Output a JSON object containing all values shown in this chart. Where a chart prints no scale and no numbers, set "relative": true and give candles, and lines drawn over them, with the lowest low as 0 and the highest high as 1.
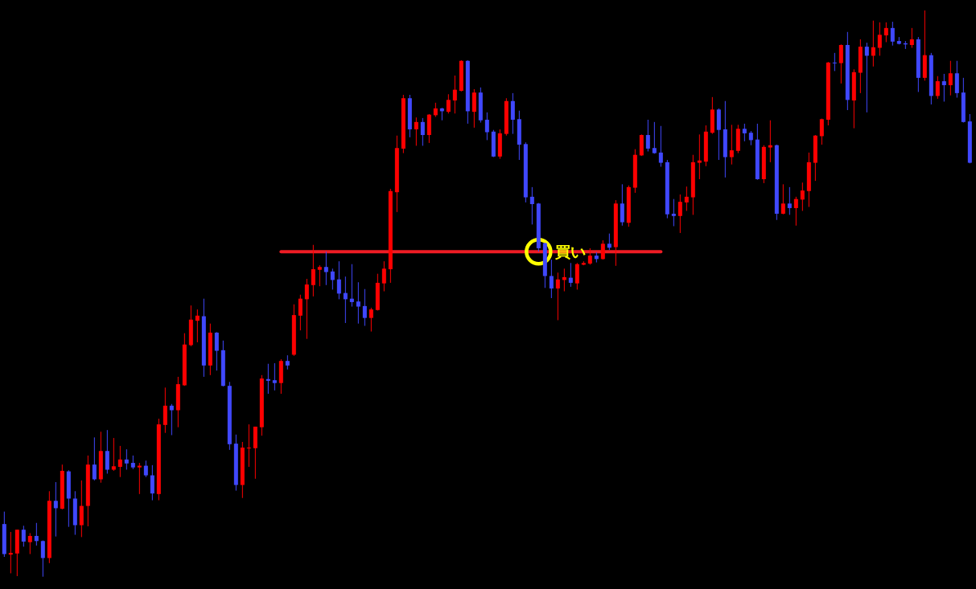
{
  "chart_data": {
    "type": "candlestick",
    "relative": true,
    "categories": [
      null,
      null,
      null,
      null,
      null,
      null,
      null,
      null,
      null,
      null,
      null,
      null,
      null,
      null,
      null,
      null,
      null,
      null,
      null,
      null,
      null,
      null,
      null,
      null,
      null,
      null,
      null,
      null,
      null,
      null,
      null,
      null,
      null,
      null,
      null,
      null,
      null,
      null,
      null,
      null,
      null,
      null,
      null,
      null,
      null,
      null,
      null,
      null,
      null,
      null,
      null,
      null,
      null,
      null,
      null,
      null,
      null,
      null,
      null,
      null,
      null,
      null,
      null,
      null,
      null,
      null,
      null,
      null,
      null,
      null,
      null,
      null,
      null,
      null,
      null,
      null,
      null,
      null,
      null,
      null,
      null,
      null,
      null,
      null,
      null,
      null,
      null,
      null,
      null,
      null,
      null,
      null,
      null,
      null,
      null,
      null,
      null,
      null,
      null,
      null,
      null,
      null,
      null,
      null,
      null,
      null,
      null,
      null,
      null,
      null,
      null,
      null,
      null,
      null,
      null,
      null,
      null,
      null,
      null,
      null,
      null,
      null,
      null,
      null,
      null,
      null,
      null,
      null,
      null,
      null,
      null,
      null,
      null,
      null,
      null,
      null,
      null,
      null,
      null,
      null,
      null,
      null,
      null,
      null,
      null,
      null,
      null,
      null,
      null,
      null,
      null
    ],
    "ohlc": [
      [
        0.093,
        0.115,
        0.035,
        0.04
      ],
      [
        0.039,
        0.079,
        0.006,
        0.042
      ],
      [
        0.041,
        0.083,
        0.001,
        0.083
      ],
      [
        0.083,
        0.09,
        0.053,
        0.062
      ],
      [
        0.061,
        0.077,
        0.04,
        0.072
      ],
      [
        0.072,
        0.095,
        0.055,
        0.063
      ],
      [
        0.063,
        0.064,
        0.0,
        0.033
      ],
      [
        0.033,
        0.151,
        0.024,
        0.134
      ],
      [
        0.134,
        0.167,
        0.071,
        0.121
      ],
      [
        0.12,
        0.198,
        0.119,
        0.187
      ],
      [
        0.186,
        0.188,
        0.088,
        0.138
      ],
      [
        0.138,
        0.151,
        0.074,
        0.091
      ],
      [
        0.091,
        0.17,
        0.07,
        0.125
      ],
      [
        0.125,
        0.214,
        0.089,
        0.198
      ],
      [
        0.198,
        0.246,
        0.17,
        0.172
      ],
      [
        0.172,
        0.256,
        0.166,
        0.222
      ],
      [
        0.222,
        0.259,
        0.182,
        0.189
      ],
      [
        0.189,
        0.245,
        0.187,
        0.195
      ],
      [
        0.194,
        0.231,
        0.176,
        0.207
      ],
      [
        0.207,
        0.225,
        0.189,
        0.2
      ],
      [
        0.201,
        0.214,
        0.19,
        0.193
      ],
      [
        0.193,
        0.201,
        0.146,
        0.196
      ],
      [
        0.196,
        0.205,
        0.176,
        0.179
      ],
      [
        0.179,
        0.197,
        0.135,
        0.147
      ],
      [
        0.146,
        0.279,
        0.135,
        0.269
      ],
      [
        0.268,
        0.334,
        0.254,
        0.302
      ],
      [
        0.302,
        0.305,
        0.25,
        0.294
      ],
      [
        0.294,
        0.353,
        0.264,
        0.34
      ],
      [
        0.338,
        0.43,
        0.337,
        0.41
      ],
      [
        0.409,
        0.479,
        0.407,
        0.454
      ],
      [
        0.452,
        0.472,
        0.414,
        0.461
      ],
      [
        0.46,
        0.491,
        0.353,
        0.373
      ],
      [
        0.373,
        0.447,
        0.356,
        0.431
      ],
      [
        0.431,
        0.432,
        0.364,
        0.399
      ],
      [
        0.4,
        0.417,
        0.336,
        0.337
      ],
      [
        0.337,
        0.344,
        0.224,
        0.234
      ],
      [
        0.235,
        0.251,
        0.152,
        0.162
      ],
      [
        0.162,
        0.238,
        0.139,
        0.228
      ],
      [
        0.227,
        0.269,
        0.194,
        0.228
      ],
      [
        0.227,
        0.265,
        0.173,
        0.265
      ],
      [
        0.264,
        0.356,
        0.249,
        0.35
      ],
      [
        0.349,
        0.376,
        0.323,
        0.346
      ],
      [
        0.347,
        0.377,
        0.329,
        0.342
      ],
      [
        0.342,
        0.384,
        0.323,
        0.381
      ],
      [
        0.381,
        0.391,
        0.366,
        0.373
      ],
      [
        0.392,
        0.481,
        0.39,
        0.462
      ],
      [
        0.461,
        0.498,
        0.435,
        0.491
      ],
      [
        0.49,
        0.526,
        0.42,
        0.516
      ],
      [
        0.515,
        0.586,
        0.495,
        0.543
      ],
      [
        0.542,
        0.55,
        0.513,
        0.547
      ],
      [
        0.547,
        0.574,
        0.515,
        0.538
      ],
      [
        0.539,
        0.544,
        0.507,
        0.524
      ],
      [
        0.525,
        0.557,
        0.49,
        0.5
      ],
      [
        0.501,
        0.53,
        0.448,
        0.49
      ],
      [
        0.491,
        0.552,
        0.477,
        0.485
      ],
      [
        0.486,
        0.52,
        0.447,
        0.477
      ],
      [
        0.478,
        0.508,
        0.443,
        0.457
      ],
      [
        0.457,
        0.475,
        0.433,
        0.472
      ],
      [
        0.471,
        0.535,
        0.47,
        0.519
      ],
      [
        0.518,
        0.557,
        0.504,
        0.544
      ],
      [
        0.543,
        0.685,
        0.519,
        0.681
      ],
      [
        0.679,
        0.779,
        0.644,
        0.757
      ],
      [
        0.756,
        0.851,
        0.748,
        0.845
      ],
      [
        0.845,
        0.851,
        0.776,
        0.79
      ],
      [
        0.79,
        0.811,
        0.761,
        0.803
      ],
      [
        0.803,
        0.81,
        0.761,
        0.78
      ],
      [
        0.78,
        0.817,
        0.766,
        0.816
      ],
      [
        0.815,
        0.837,
        0.812,
        0.827
      ],
      [
        0.827,
        0.828,
        0.806,
        0.822
      ],
      [
        0.821,
        0.852,
        0.818,
        0.842
      ],
      [
        0.841,
        0.885,
        0.818,
        0.86
      ],
      [
        0.858,
        0.912,
        0.857,
        0.911
      ],
      [
        0.911,
        0.912,
        0.8,
        0.822
      ],
      [
        0.821,
        0.861,
        0.793,
        0.855
      ],
      [
        0.855,
        0.864,
        0.802,
        0.806
      ],
      [
        0.807,
        0.82,
        0.771,
        0.785
      ],
      [
        0.786,
        0.789,
        0.741,
        0.742
      ],
      [
        0.742,
        0.79,
        0.738,
        0.783
      ],
      [
        0.782,
        0.845,
        0.779,
        0.84
      ],
      [
        0.84,
        0.854,
        0.782,
        0.807
      ],
      [
        0.808,
        0.823,
        0.736,
        0.763
      ],
      [
        0.764,
        0.767,
        0.661,
        0.67
      ],
      [
        0.671,
        0.688,
        0.622,
        0.658
      ],
      [
        0.659,
        0.66,
        0.574,
        0.58
      ],
      [
        0.589,
        0.59,
        0.51,
        0.531
      ],
      [
        0.531,
        0.56,
        0.492,
        0.509
      ],
      [
        0.509,
        0.537,
        0.453,
        0.525
      ],
      [
        0.524,
        0.544,
        0.504,
        0.529
      ],
      [
        0.528,
        0.554,
        0.512,
        0.519
      ],
      [
        0.518,
        0.554,
        0.507,
        0.552
      ],
      [
        0.551,
        0.557,
        0.55,
        0.554
      ],
      [
        0.553,
        0.58,
        0.551,
        0.567
      ],
      [
        0.567,
        0.573,
        0.555,
        0.561
      ],
      [
        0.561,
        0.594,
        0.56,
        0.588
      ],
      [
        0.588,
        0.606,
        0.577,
        0.581
      ],
      [
        0.582,
        0.665,
        0.549,
        0.659
      ],
      [
        0.659,
        0.693,
        0.62,
        0.626
      ],
      [
        0.625,
        0.691,
        0.618,
        0.688
      ],
      [
        0.687,
        0.755,
        0.678,
        0.745
      ],
      [
        0.744,
        0.781,
        0.743,
        0.78
      ],
      [
        0.78,
        0.807,
        0.751,
        0.756
      ],
      [
        0.757,
        0.803,
        0.747,
        0.748
      ],
      [
        0.749,
        0.796,
        0.724,
        0.731
      ],
      [
        0.732,
        0.736,
        0.633,
        0.64
      ],
      [
        0.641,
        0.667,
        0.619,
        0.637
      ],
      [
        0.637,
        0.675,
        0.607,
        0.662
      ],
      [
        0.661,
        0.689,
        0.646,
        0.671
      ],
      [
        0.67,
        0.745,
        0.639,
        0.732
      ],
      [
        0.731,
        0.781,
        0.702,
        0.735
      ],
      [
        0.733,
        0.797,
        0.725,
        0.786
      ],
      [
        0.784,
        0.847,
        0.782,
        0.825
      ],
      [
        0.825,
        0.827,
        0.736,
        0.789
      ],
      [
        0.79,
        0.84,
        0.705,
        0.741
      ],
      [
        0.741,
        0.798,
        0.728,
        0.753
      ],
      [
        0.752,
        0.798,
        0.748,
        0.791
      ],
      [
        0.791,
        0.8,
        0.769,
        0.783
      ],
      [
        0.784,
        0.787,
        0.762,
        0.771
      ],
      [
        0.772,
        0.8,
        0.701,
        0.702
      ],
      [
        0.702,
        0.762,
        0.695,
        0.759
      ],
      [
        0.758,
        0.806,
        0.732,
        0.762
      ],
      [
        0.762,
        0.763,
        0.63,
        0.641
      ],
      [
        0.641,
        0.693,
        0.64,
        0.659
      ],
      [
        0.659,
        0.688,
        0.639,
        0.651
      ],
      [
        0.651,
        0.671,
        0.62,
        0.667
      ],
      [
        0.666,
        0.696,
        0.646,
        0.682
      ],
      [
        0.681,
        0.749,
        0.653,
        0.732
      ],
      [
        0.731,
        0.78,
        0.699,
        0.779
      ],
      [
        0.778,
        0.809,
        0.763,
        0.808
      ],
      [
        0.807,
        0.909,
        0.797,
        0.908
      ],
      [
        0.908,
        0.925,
        0.893,
        0.907
      ],
      [
        0.907,
        0.94,
        0.871,
        0.939
      ],
      [
        0.939,
        0.962,
        0.824,
        0.842
      ],
      [
        0.841,
        0.896,
        0.792,
        0.891
      ],
      [
        0.89,
        0.949,
        0.854,
        0.936
      ],
      [
        0.936,
        0.943,
        0.82,
        0.92
      ],
      [
        0.92,
        0.982,
        0.901,
        0.935
      ],
      [
        0.934,
        0.979,
        0.92,
        0.957
      ],
      [
        0.956,
        0.979,
        0.944,
        0.969
      ],
      [
        0.969,
        0.98,
        0.938,
        0.945
      ],
      [
        0.946,
        0.953,
        0.94,
        0.941
      ],
      [
        0.942,
        0.946,
        0.932,
        0.94
      ],
      [
        0.939,
        0.969,
        0.934,
        0.949
      ],
      [
        0.949,
        0.953,
        0.856,
        0.881
      ],
      [
        0.881,
        1.0,
        0.876,
        0.921
      ],
      [
        0.921,
        0.925,
        0.834,
        0.849
      ],
      [
        0.849,
        0.884,
        0.844,
        0.875
      ],
      [
        0.875,
        0.888,
        0.839,
        0.868
      ],
      [
        0.868,
        0.911,
        0.85,
        0.889
      ],
      [
        0.889,
        0.911,
        0.846,
        0.854
      ],
      [
        0.855,
        0.881,
        0.802,
        0.803
      ],
      [
        0.804,
        0.817,
        0.73,
        0.731
      ]
    ],
    "colors": [
      "#4048ff",
      "#ff0000",
      "#ff0000",
      "#4048ff",
      "#ff0000",
      "#4048ff",
      "#4048ff",
      "#ff0000",
      "#4048ff",
      "#ff0000",
      "#4048ff",
      "#4048ff",
      "#ff0000",
      "#ff0000",
      "#4048ff",
      "#ff0000",
      "#4048ff",
      "#ff0000",
      "#ff0000",
      "#4048ff",
      "#4048ff",
      "#ff0000",
      "#4048ff",
      "#4048ff",
      "#ff0000",
      "#ff0000",
      "#4048ff",
      "#ff0000",
      "#ff0000",
      "#ff0000",
      "#ff0000",
      "#4048ff",
      "#ff0000",
      "#4048ff",
      "#4048ff",
      "#4048ff",
      "#4048ff",
      "#ff0000",
      "#ff0000",
      "#ff0000",
      "#ff0000",
      "#4048ff",
      "#4048ff",
      "#ff0000",
      "#4048ff",
      "#ff0000",
      "#ff0000",
      "#ff0000",
      "#ff0000",
      "#ff0000",
      "#4048ff",
      "#4048ff",
      "#4048ff",
      "#4048ff",
      "#4048ff",
      "#4048ff",
      "#4048ff",
      "#ff0000",
      "#ff0000",
      "#ff0000",
      "#ff0000",
      "#ff0000",
      "#ff0000",
      "#4048ff",
      "#ff0000",
      "#4048ff",
      "#ff0000",
      "#ff0000",
      "#4048ff",
      "#ff0000",
      "#ff0000",
      "#ff0000",
      "#4048ff",
      "#ff0000",
      "#4048ff",
      "#4048ff",
      "#4048ff",
      "#ff0000",
      "#ff0000",
      "#4048ff",
      "#4048ff",
      "#4048ff",
      "#4048ff",
      "#4048ff",
      "#4048ff",
      "#4048ff",
      "#ff0000",
      "#ff0000",
      "#4048ff",
      "#ff0000",
      "#ff0000",
      "#ff0000",
      "#4048ff",
      "#ff0000",
      "#4048ff",
      "#ff0000",
      "#4048ff",
      "#ff0000",
      "#ff0000",
      "#ff0000",
      "#4048ff",
      "#4048ff",
      "#4048ff",
      "#4048ff",
      "#4048ff",
      "#ff0000",
      "#ff0000",
      "#ff0000",
      "#ff0000",
      "#ff0000",
      "#ff0000",
      "#4048ff",
      "#4048ff",
      "#ff0000",
      "#ff0000",
      "#4048ff",
      "#4048ff",
      "#4048ff",
      "#ff0000",
      "#ff0000",
      "#4048ff",
      "#ff0000",
      "#4048ff",
      "#ff0000",
      "#ff0000",
      "#ff0000",
      "#ff0000",
      "#ff0000",
      "#ff0000",
      "#4048ff",
      "#ff0000",
      "#4048ff",
      "#ff0000",
      "#ff0000",
      "#4048ff",
      "#ff0000",
      "#ff0000",
      "#ff0000",
      "#4048ff",
      "#4048ff",
      "#4048ff",
      "#ff0000",
      "#4048ff",
      "#ff0000",
      "#4048ff",
      "#ff0000",
      "#4048ff",
      "#ff0000",
      "#4048ff",
      "#4048ff",
      "#4048ff"
    ],
    "series": [
      {
        "type": "line",
        "color": "#ee1c24",
        "line_style": "solid",
        "values": [
          null,
          null,
          null,
          null,
          null,
          null,
          null,
          null,
          null,
          null,
          null,
          null,
          null,
          null,
          null,
          null,
          null,
          null,
          null,
          null,
          null,
          null,
          null,
          null,
          null,
          null,
          null,
          null,
          null,
          null,
          null,
          null,
          null,
          null,
          null,
          null,
          null,
          null,
          null,
          null,
          null,
          null,
          null,
          0.574,
          0.574,
          0.574,
          0.574,
          0.574,
          0.574,
          0.574,
          0.574,
          0.574,
          0.574,
          0.574,
          0.574,
          0.574,
          0.574,
          0.574,
          0.574,
          0.574,
          0.574,
          0.574,
          0.574,
          0.574,
          0.574,
          0.574,
          0.574,
          0.574,
          0.574,
          0.574,
          0.574,
          0.574,
          0.574,
          0.574,
          0.574,
          0.574,
          0.574,
          0.574,
          0.574,
          0.574,
          0.574,
          0.574,
          0.574,
          0.574,
          0.574,
          0.574,
          0.574,
          0.574,
          0.574,
          0.574,
          0.574,
          0.574,
          0.574,
          0.574,
          0.574,
          0.574,
          0.574,
          0.574,
          0.574,
          0.574,
          0.574,
          0.574,
          0.574,
          null,
          null,
          null,
          null,
          null,
          null,
          null,
          null,
          null,
          null,
          null,
          null,
          null,
          null,
          null,
          null,
          null,
          null,
          null,
          null,
          null,
          null,
          null,
          null,
          null,
          null,
          null,
          null,
          null,
          null,
          null,
          null,
          null,
          null,
          null,
          null,
          null,
          null,
          null,
          null,
          null,
          null,
          null,
          null,
          null,
          null,
          null,
          null
        ]
      },
      {
        "type": "scatter",
        "name": "買い",
        "color": "#ffff00",
        "marker": "circle",
        "values": [
          null,
          null,
          null,
          null,
          null,
          null,
          null,
          null,
          null,
          null,
          null,
          null,
          null,
          null,
          null,
          null,
          null,
          null,
          null,
          null,
          null,
          null,
          null,
          null,
          null,
          null,
          null,
          null,
          null,
          null,
          null,
          null,
          null,
          null,
          null,
          null,
          null,
          null,
          null,
          null,
          null,
          null,
          null,
          null,
          null,
          null,
          null,
          null,
          null,
          null,
          null,
          null,
          null,
          null,
          null,
          null,
          null,
          null,
          null,
          null,
          null,
          null,
          null,
          null,
          null,
          null,
          null,
          null,
          null,
          null,
          null,
          null,
          null,
          null,
          null,
          null,
          null,
          null,
          null,
          null,
          null,
          null,
          null,
          0.574,
          null,
          null,
          null,
          null,
          null,
          null,
          null,
          null,
          null,
          null,
          null,
          null,
          null,
          null,
          null,
          null,
          null,
          null,
          null,
          null,
          null,
          null,
          null,
          null,
          null,
          null,
          null,
          null,
          null,
          null,
          null,
          null,
          null,
          null,
          null,
          null,
          null,
          null,
          null,
          null,
          null,
          null,
          null,
          null,
          null,
          null,
          null,
          null,
          null,
          null,
          null,
          null,
          null,
          null,
          null,
          null,
          null,
          null,
          null,
          null,
          null,
          null,
          null,
          null,
          null,
          null,
          null
        ]
      }
    ]
  }
}
